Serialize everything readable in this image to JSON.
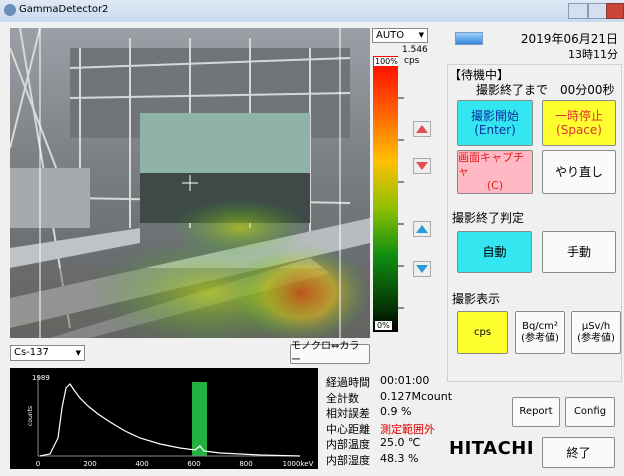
{
  "window": {
    "title": "GammaDetector2"
  },
  "camera": {
    "scale_mode": "AUTO",
    "max_value": "1.546",
    "unit": "cps",
    "top_label": "100%",
    "bottom_label": "0%"
  },
  "status": {
    "date": "2019年06月21日",
    "time": "13時11分",
    "state": "【待機中】",
    "remaining_label": "撮影終了まで",
    "remaining": "00分00秒"
  },
  "controls": {
    "start": [
      "撮影開始",
      "(Enter)"
    ],
    "pause": [
      "一時停止",
      "(Space)"
    ],
    "capture": [
      "画面キャプチャ",
      "(C)"
    ],
    "retry": "やり直し",
    "end_judgement_title": "撮影終了判定",
    "auto": "自動",
    "manual": "手動",
    "display_title": "撮影表示",
    "cps": "cps",
    "bq": [
      "Bq/cm²",
      "(参考値)"
    ],
    "usv": [
      "μSv/h",
      "(参考値)"
    ]
  },
  "nuclide": "Cs-137",
  "color_toggle": "モノクロ⇔カラー",
  "spectrum": {
    "y_max_label": "1989",
    "y_label": "counts",
    "x_labels": [
      "0",
      "200",
      "400",
      "600",
      "800",
      "1000keV"
    ]
  },
  "stats": [
    {
      "label": "経過時間",
      "value": "00:01:00"
    },
    {
      "label": "全計数",
      "value": "0.127Mcount"
    },
    {
      "label": "相対誤差",
      "value": "0.9 %"
    },
    {
      "label": "中心距離",
      "value": "測定範囲外"
    },
    {
      "label": "内部温度",
      "value": "25.0 ℃"
    },
    {
      "label": "内部湿度",
      "value": "48.3 %"
    }
  ],
  "report": "Report",
  "config": "Config",
  "brand": "HITACHI",
  "exit": "終了"
}
